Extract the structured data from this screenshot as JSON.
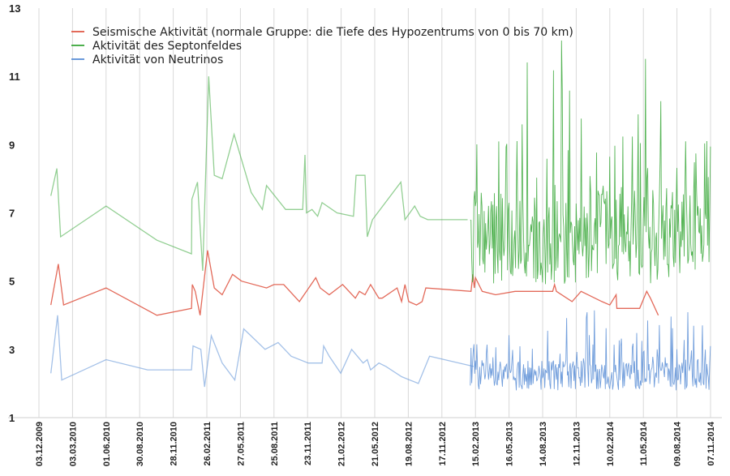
{
  "chart_data": {
    "type": "line",
    "title": "",
    "xlabel": "",
    "ylabel": "",
    "ylim": [
      1,
      13
    ],
    "y_ticks": [
      "1",
      "3",
      "5",
      "7",
      "9",
      "11",
      "13"
    ],
    "grid": "vertical",
    "legend_position": "top-left",
    "x_ticks": [
      "03.12.2009",
      "03.03.2010",
      "01.06.2010",
      "30.08.2010",
      "28.11.2010",
      "26.02.2011",
      "27.05.2011",
      "25.08.2011",
      "23.11.2011",
      "21.02.2012",
      "21.05.2012",
      "19.08.2012",
      "17.11.2012",
      "15.02.2013",
      "16.05.2013",
      "14.08.2013",
      "12.11.2013",
      "10.02.2014",
      "11.05.2014",
      "09.08.2014",
      "07.11.2014"
    ],
    "series": [
      {
        "name": "Seismische Aktivität (normale Gruppe: die Tiefe des Hypozentrums von 0 bis 70 km)",
        "color": "#e05a48",
        "x": [
          "2010-01-04",
          "2010-01-24",
          "2010-02-07",
          "2010-06-01",
          "2010-10-15",
          "2011-01-16",
          "2011-01-18",
          "2011-01-26",
          "2011-02-08",
          "2011-02-28",
          "2011-03-18",
          "2011-04-08",
          "2011-05-06",
          "2011-05-30",
          "2011-08-05",
          "2011-08-25",
          "2011-09-20",
          "2011-11-01",
          "2011-12-15",
          "2011-12-27",
          "2012-01-20",
          "2012-02-25",
          "2012-03-30",
          "2012-04-10",
          "2012-04-25",
          "2012-05-10",
          "2012-06-01",
          "2012-06-10",
          "2012-07-20",
          "2012-08-01",
          "2012-08-10",
          "2012-08-20",
          "2012-09-10",
          "2012-09-25",
          "2012-10-05",
          "2013-02-03",
          "2013-02-08",
          "2013-02-12",
          "2013-02-15",
          "2013-03-05",
          "2013-04-10",
          "2013-06-01",
          "2013-07-20",
          "2013-09-10",
          "2013-09-15",
          "2013-09-20",
          "2013-11-01",
          "2013-11-25",
          "2014-01-20",
          "2014-02-10",
          "2014-02-27",
          "2014-03-01",
          "2014-03-20",
          "2014-05-01",
          "2014-05-20",
          "2014-05-30",
          "2014-06-20"
        ],
        "values": [
          4.3,
          5.5,
          4.3,
          4.8,
          4.0,
          4.2,
          4.9,
          4.7,
          4.0,
          5.9,
          4.8,
          4.6,
          5.2,
          5.0,
          4.8,
          4.9,
          4.9,
          4.4,
          5.1,
          4.8,
          4.6,
          4.9,
          4.5,
          4.7,
          4.6,
          4.9,
          4.5,
          4.5,
          4.8,
          4.4,
          4.9,
          4.4,
          4.3,
          4.4,
          4.8,
          4.7,
          5.2,
          4.8,
          5.1,
          4.7,
          4.6,
          4.7,
          4.7,
          4.7,
          4.9,
          4.7,
          4.4,
          4.7,
          4.4,
          4.3,
          4.6,
          4.2,
          4.2,
          4.2,
          4.7,
          4.5,
          4.0
        ]
      },
      {
        "name": "Aktivität des Septonfeldes",
        "color": "#3aa83a",
        "x": [
          "2010-01-04",
          "2010-01-20",
          "2010-01-30",
          "2010-06-01",
          "2010-10-15",
          "2011-01-16",
          "2011-01-17",
          "2011-02-01",
          "2011-02-15",
          "2011-03-03",
          "2011-03-18",
          "2011-04-08",
          "2011-05-10",
          "2011-06-25",
          "2011-07-25",
          "2011-08-05",
          "2011-09-25",
          "2011-10-25",
          "2011-11-10",
          "2011-11-16",
          "2011-11-20",
          "2011-12-05",
          "2011-12-20",
          "2012-01-01",
          "2012-02-10",
          "2012-03-25",
          "2012-04-01",
          "2012-04-25",
          "2012-05-01",
          "2012-05-15",
          "2012-07-30",
          "2012-08-10",
          "2012-09-05",
          "2012-09-20",
          "2012-10-10",
          "2013-01-25"
        ],
        "values": [
          7.5,
          8.3,
          6.3,
          7.2,
          6.2,
          5.8,
          7.4,
          7.9,
          5.3,
          11.0,
          8.1,
          8.0,
          9.3,
          7.6,
          7.1,
          7.8,
          7.1,
          7.1,
          7.1,
          8.7,
          7.0,
          7.1,
          6.9,
          7.3,
          7.0,
          6.9,
          8.1,
          8.1,
          6.3,
          6.8,
          7.9,
          6.8,
          7.2,
          6.9,
          6.8,
          6.8
        ],
        "dense_segment": {
          "start": "2013-02-01",
          "end": "2014-11-07",
          "baseline": 6.5,
          "min": 4.9,
          "max": 12.3
        }
      },
      {
        "name": "Aktivität von Neutrinos",
        "color": "#5a8ed6",
        "x": [
          "2010-01-04",
          "2010-01-22",
          "2010-02-02",
          "2010-06-01",
          "2010-09-20",
          "2011-01-16",
          "2011-01-20",
          "2011-02-10",
          "2011-02-20",
          "2011-03-10",
          "2011-04-08",
          "2011-05-12",
          "2011-06-05",
          "2011-08-01",
          "2011-09-05",
          "2011-10-10",
          "2011-11-25",
          "2012-01-01",
          "2012-01-05",
          "2012-01-20",
          "2012-02-20",
          "2012-03-20",
          "2012-04-20",
          "2012-05-01",
          "2012-05-10",
          "2012-06-01",
          "2012-06-20",
          "2012-08-01",
          "2012-09-15",
          "2012-10-15",
          "2013-02-10"
        ],
        "values": [
          2.3,
          4.0,
          2.1,
          2.7,
          2.4,
          2.4,
          3.1,
          3.0,
          1.9,
          3.4,
          2.6,
          2.1,
          3.6,
          3.0,
          3.2,
          2.8,
          2.6,
          2.6,
          3.1,
          2.8,
          2.3,
          3.0,
          2.6,
          2.7,
          2.4,
          2.6,
          2.5,
          2.2,
          2.0,
          2.8,
          2.5
        ],
        "dense_segment": {
          "start": "2013-02-01",
          "end": "2014-11-07",
          "baseline": 2.3,
          "min": 1.8,
          "max": 4.2
        }
      }
    ]
  }
}
